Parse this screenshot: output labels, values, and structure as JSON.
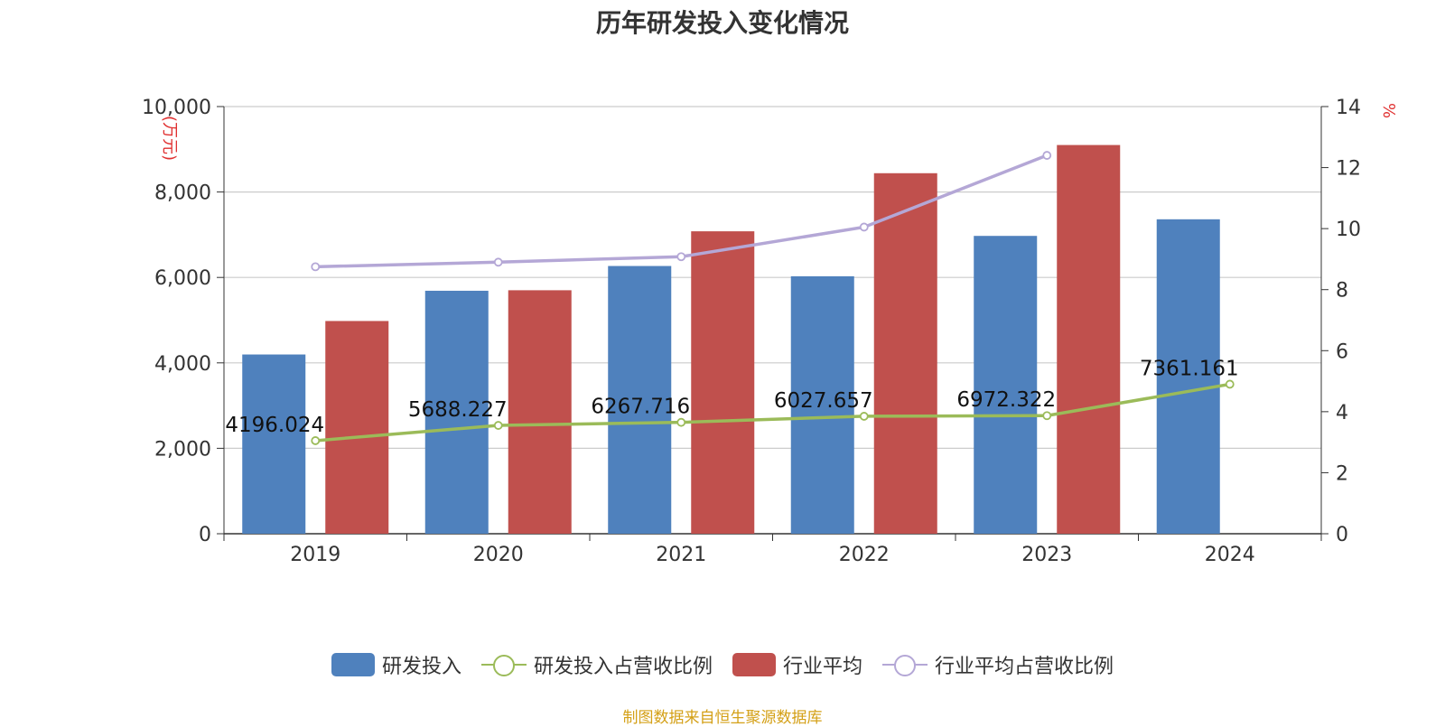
{
  "title": "历年研发投入变化情况",
  "source": "制图数据来自恒生聚源数据库",
  "chart_data": {
    "type": "bar",
    "categories": [
      "2019",
      "2020",
      "2021",
      "2022",
      "2023",
      "2024"
    ],
    "y_left": {
      "unit": "万元",
      "ticks": [
        "0",
        "2,000",
        "4,000",
        "6,000",
        "8,000",
        "10,000"
      ],
      "range": [
        0,
        10000
      ]
    },
    "y_right": {
      "unit": "%",
      "ticks": [
        "0",
        "2",
        "4",
        "6",
        "8",
        "10",
        "12",
        "14"
      ],
      "range": [
        0,
        14
      ]
    },
    "grid": true,
    "legend_position": "bottom",
    "series": [
      {
        "name": "研发投入",
        "type": "bar",
        "axis": "left",
        "color": "#4f81bd",
        "values": [
          4196.024,
          5688.227,
          6267.716,
          6027.657,
          6972.322,
          7361.161
        ],
        "labels": [
          "4196.024",
          "5688.227",
          "6267.716",
          "6027.657",
          "6972.322",
          "7361.161"
        ]
      },
      {
        "name": "研发投入占营收比例",
        "type": "line",
        "axis": "right",
        "color": "#9bbb59",
        "values": [
          3.05,
          3.55,
          3.65,
          3.85,
          3.87,
          4.9
        ]
      },
      {
        "name": "行业平均",
        "type": "bar",
        "axis": "left",
        "color": "#c0504d",
        "values": [
          4980,
          5700,
          7080,
          8440,
          9100,
          null
        ]
      },
      {
        "name": "行业平均占营收比例",
        "type": "line",
        "axis": "right",
        "color": "#b4a7d6",
        "values": [
          8.75,
          8.9,
          9.08,
          10.05,
          12.4,
          null
        ]
      }
    ]
  }
}
